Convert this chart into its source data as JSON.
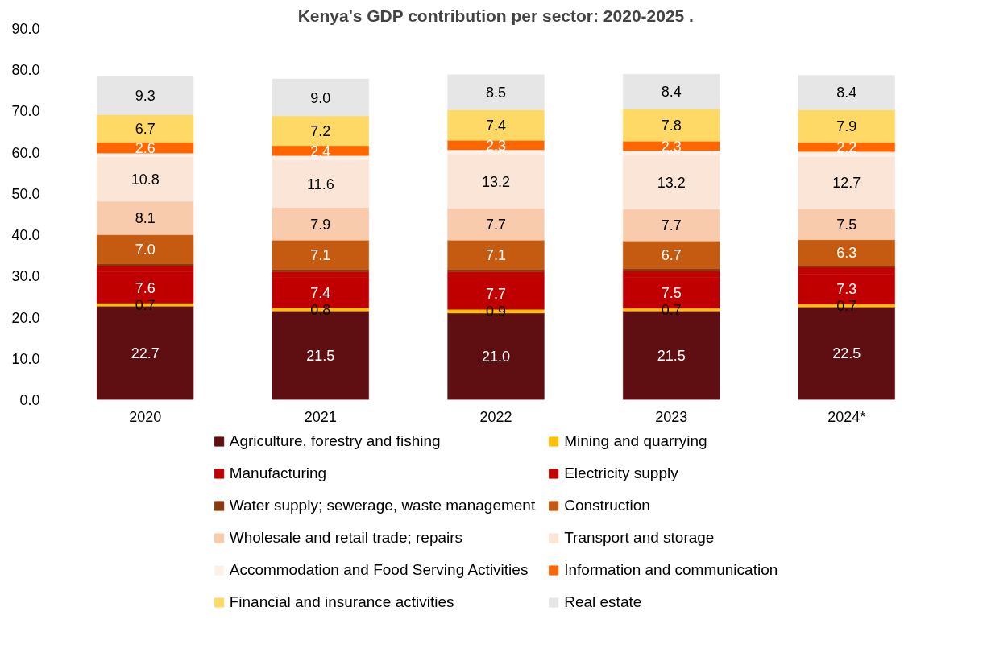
{
  "chart_data": {
    "type": "bar",
    "stacked": true,
    "title": "Kenya's GDP contribution per sector: 2020-2025 .",
    "categories": [
      "2020",
      "2021",
      "2022",
      "2023",
      "2024*"
    ],
    "ylim": [
      0,
      90
    ],
    "yticks": [
      {
        "value": 0,
        "label": "0.0"
      },
      {
        "value": 10,
        "label": "10.0"
      },
      {
        "value": 20,
        "label": "20.0"
      },
      {
        "value": 30,
        "label": "30.0"
      },
      {
        "value": 40,
        "label": "40.0"
      },
      {
        "value": 50,
        "label": "50.0"
      },
      {
        "value": 60,
        "label": "60.0"
      },
      {
        "value": 70,
        "label": "70.0"
      },
      {
        "value": 80,
        "label": "80.0"
      },
      {
        "value": 90,
        "label": "90.0"
      }
    ],
    "grid": false,
    "legend": "bottom",
    "series": [
      {
        "name": "Agriculture, forestry and fishing",
        "color": "#5f0f12",
        "values": [
          22.7,
          21.5,
          21.0,
          21.5,
          22.5
        ],
        "value_labels": [
          "22.7",
          "21.5",
          "21.0",
          "21.5",
          "22.5"
        ]
      },
      {
        "name": "Mining and quarrying",
        "color": "#ffc000",
        "values": [
          0.7,
          0.8,
          0.9,
          0.7,
          0.7
        ],
        "value_labels": [
          "0.7",
          "0.8",
          "0.9",
          "0.7",
          "0.7"
        ]
      },
      {
        "name": "Manufacturing",
        "color": "#c00000",
        "values": [
          7.6,
          7.4,
          7.7,
          7.5,
          7.3
        ],
        "value_labels": [
          "7.6",
          "7.4",
          "7.7",
          "7.5",
          "7.3"
        ]
      },
      {
        "name": "Electricity supply",
        "color": "#c10202",
        "values": [
          1.4,
          1.4,
          1.5,
          1.5,
          1.6
        ]
      },
      {
        "name": "Water supply; sewerage, waste management",
        "color": "#8b3a0f",
        "values": [
          0.6,
          0.5,
          0.5,
          0.6,
          0.4
        ]
      },
      {
        "name": "Construction",
        "color": "#c55a11",
        "values": [
          7.0,
          7.1,
          7.1,
          6.7,
          6.3
        ],
        "value_labels": [
          "7.0",
          "7.1",
          "7.1",
          "6.7",
          "6.3"
        ]
      },
      {
        "name": "Wholesale and retail trade; repairs",
        "color": "#f8cbad",
        "values": [
          8.1,
          7.9,
          7.7,
          7.7,
          7.5
        ],
        "value_labels": [
          "8.1",
          "7.9",
          "7.7",
          "7.7",
          "7.5"
        ]
      },
      {
        "name": "Transport and storage",
        "color": "#fbe5d6",
        "values": [
          10.8,
          11.6,
          13.2,
          13.2,
          12.7
        ],
        "value_labels": [
          "10.8",
          "11.6",
          "13.2",
          "13.2",
          "12.7"
        ]
      },
      {
        "name": "Accommodation and Food Serving Activities",
        "color": "#fdf0e8",
        "values": [
          0.9,
          1.0,
          1.0,
          1.0,
          1.2
        ]
      },
      {
        "name": "Information and communication",
        "color": "#ff6600",
        "values": [
          2.6,
          2.4,
          2.3,
          2.3,
          2.2
        ],
        "value_labels": [
          "2.6",
          "2.4",
          "2.3",
          "2.3",
          "2.2"
        ]
      },
      {
        "name": "Financial and insurance activities",
        "color": "#ffd966",
        "values": [
          6.7,
          7.2,
          7.4,
          7.8,
          7.9
        ],
        "value_labels": [
          "6.7",
          "7.2",
          "7.4",
          "7.8",
          "7.9"
        ]
      },
      {
        "name": "Real estate",
        "color": "#e7e6e6",
        "values": [
          9.3,
          9.0,
          8.5,
          8.4,
          8.4
        ],
        "value_labels": [
          "9.3",
          "9.0",
          "8.5",
          "8.4",
          "8.4"
        ]
      }
    ]
  }
}
